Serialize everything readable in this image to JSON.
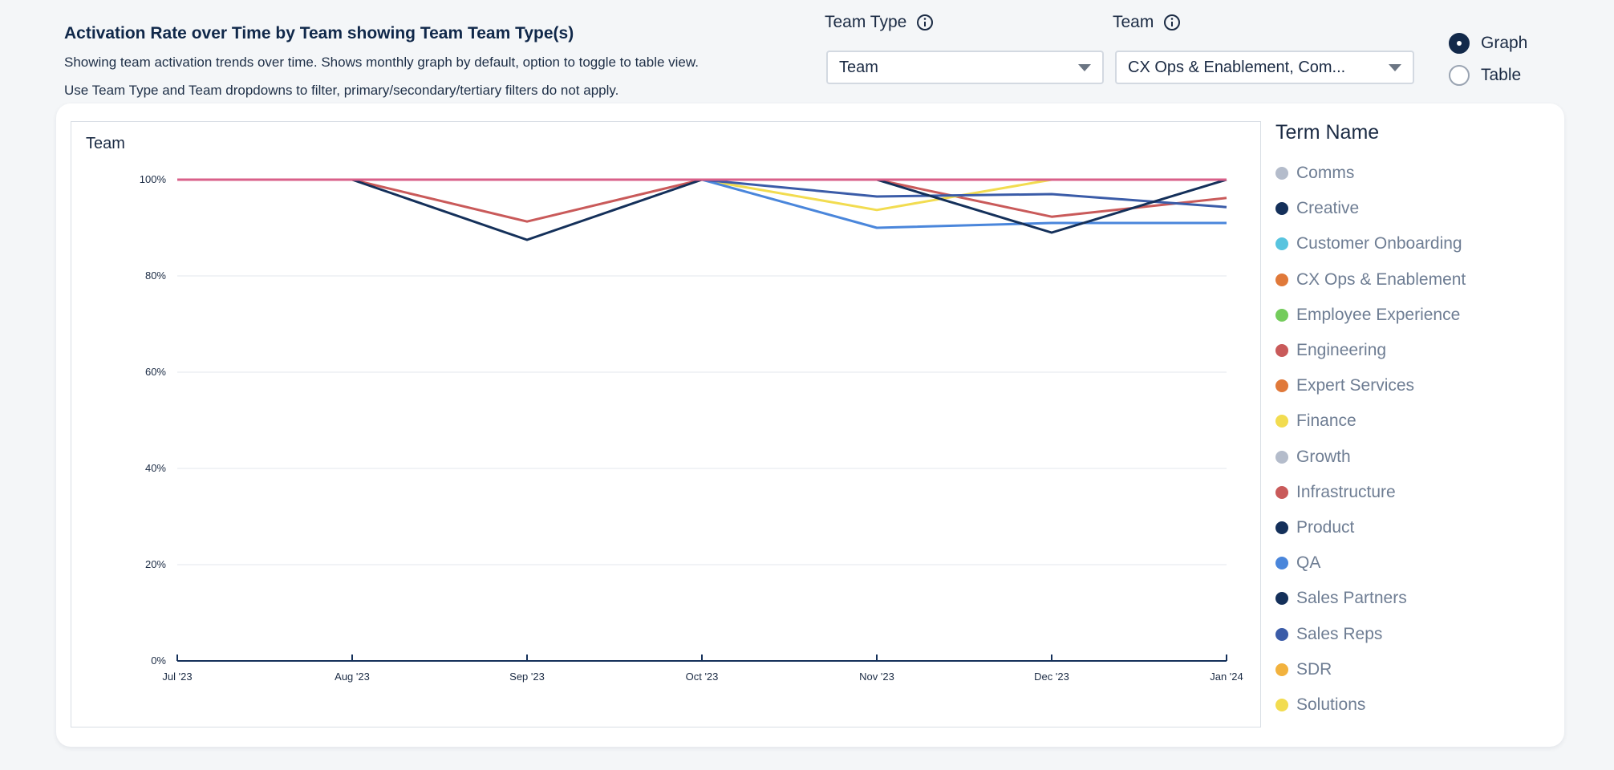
{
  "header": {
    "title": "Activation Rate over Time by Team showing Team Team Type(s)",
    "description_1": "Showing team activation trends over time. Shows monthly graph by default, option to toggle to table view.",
    "description_2": "Use Team Type and Team dropdowns to filter, primary/secondary/tertiary filters do not apply."
  },
  "filters": {
    "team_type": {
      "label": "Team Type",
      "value": "Team",
      "icon": "info-icon"
    },
    "team": {
      "label": "Team",
      "value": "CX Ops & Enablement, Com...",
      "icon": "info-icon"
    }
  },
  "view_toggle": {
    "options": [
      {
        "label": "Graph",
        "checked": true
      },
      {
        "label": "Table",
        "checked": false
      }
    ]
  },
  "chart_data": {
    "type": "line",
    "title": "Team",
    "x": [
      "Jul '23",
      "Aug '23",
      "Sep '23",
      "Oct '23",
      "Nov '23",
      "Dec '23",
      "Jan '24"
    ],
    "y_ticks": [
      "0%",
      "20%",
      "40%",
      "60%",
      "80%",
      "100%"
    ],
    "ylim": [
      0,
      100
    ],
    "grid": true,
    "legend_title": "Term Name",
    "legend_placement": "right",
    "legend": [
      {
        "name": "Comms",
        "color": "#b4bccb"
      },
      {
        "name": "Creative",
        "color": "#14305a"
      },
      {
        "name": "Customer Onboarding",
        "color": "#58c4df"
      },
      {
        "name": "CX Ops & Enablement",
        "color": "#e0793a"
      },
      {
        "name": "Employee Experience",
        "color": "#74cc5c"
      },
      {
        "name": "Engineering",
        "color": "#c95a5a"
      },
      {
        "name": "Expert Services",
        "color": "#e0793a"
      },
      {
        "name": "Finance",
        "color": "#f2dc50"
      },
      {
        "name": "Growth",
        "color": "#b4bccb"
      },
      {
        "name": "Infrastructure",
        "color": "#c95a5a"
      },
      {
        "name": "Product",
        "color": "#14305a"
      },
      {
        "name": "QA",
        "color": "#4a86db"
      },
      {
        "name": "Sales Partners",
        "color": "#14305a"
      },
      {
        "name": "Sales Reps",
        "color": "#3b5ca8"
      },
      {
        "name": "SDR",
        "color": "#f2b23e"
      },
      {
        "name": "Solutions",
        "color": "#f2dc50"
      }
    ],
    "series": [
      {
        "color": "#c95a5a",
        "values": [
          100,
          100,
          91.3,
          100,
          100,
          92.3,
          96.2
        ]
      },
      {
        "color": "#f2dc50",
        "values": [
          null,
          null,
          null,
          100,
          93.7,
          100,
          100
        ]
      },
      {
        "color": "#4a86db",
        "values": [
          null,
          null,
          null,
          100,
          90,
          91,
          91
        ]
      },
      {
        "color": "#3b5ca8",
        "values": [
          null,
          null,
          null,
          100,
          96.5,
          97,
          94.3
        ]
      },
      {
        "color": "#14305a",
        "values": [
          100,
          100,
          87.5,
          100,
          100,
          89,
          100
        ]
      },
      {
        "color": "#d9608a",
        "values": [
          100,
          100,
          100,
          100,
          100,
          100,
          100
        ]
      }
    ]
  }
}
